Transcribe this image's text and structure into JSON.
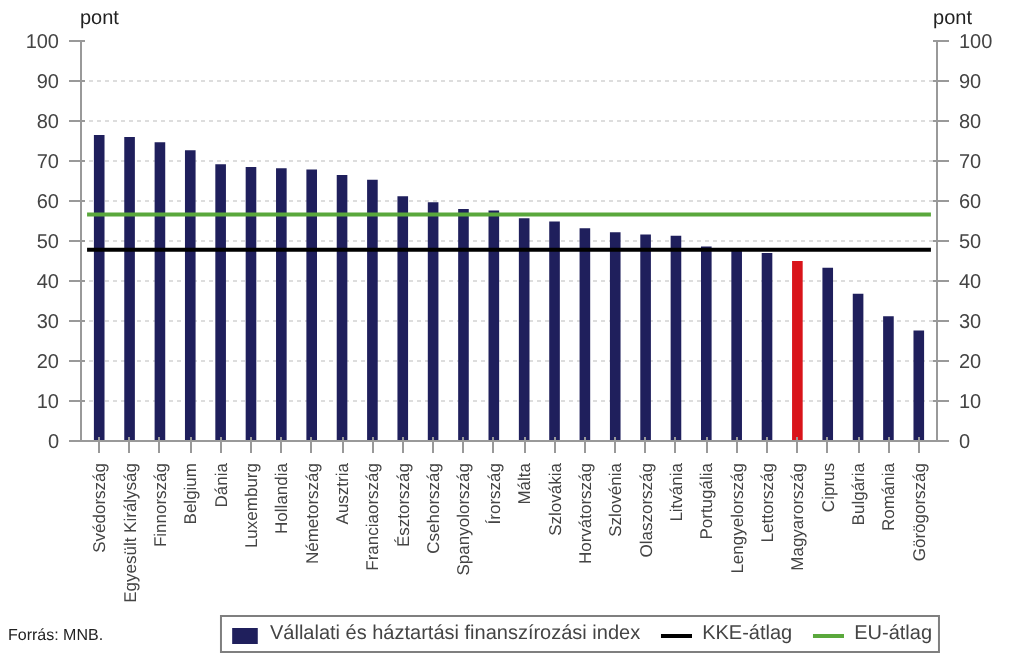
{
  "chart_data": {
    "type": "bar",
    "ylabel": "pont",
    "y2label": "pont",
    "categories": [
      "Svédország",
      "Egyesült Királyság",
      "Finnország",
      "Belgium",
      "Dánia",
      "Luxemburg",
      "Hollandia",
      "Németország",
      "Ausztria",
      "Franciaország",
      "Észtország",
      "Csehország",
      "Spanyolország",
      "Írország",
      "Málta",
      "Szlovákia",
      "Horvátország",
      "Szlovénia",
      "Olaszország",
      "Litvánia",
      "Portugália",
      "Lengyelország",
      "Lettország",
      "Magyarország",
      "Ciprus",
      "Bulgária",
      "Románia",
      "Görögország"
    ],
    "series": [
      {
        "name": "Vállalati és háztartási finanszírozási index",
        "color": "#1f1f5c",
        "colors": [
          "#1f1f5c",
          "#1f1f5c",
          "#1f1f5c",
          "#1f1f5c",
          "#1f1f5c",
          "#1f1f5c",
          "#1f1f5c",
          "#1f1f5c",
          "#1f1f5c",
          "#1f1f5c",
          "#1f1f5c",
          "#1f1f5c",
          "#1f1f5c",
          "#1f1f5c",
          "#1f1f5c",
          "#1f1f5c",
          "#1f1f5c",
          "#1f1f5c",
          "#1f1f5c",
          "#1f1f5c",
          "#1f1f5c",
          "#1f1f5c",
          "#1f1f5c",
          "#d9141a",
          "#1f1f5c",
          "#1f1f5c",
          "#1f1f5c",
          "#1f1f5c"
        ],
        "values": [
          76.5,
          76,
          74.7,
          72.7,
          69.2,
          68.5,
          68.2,
          67.9,
          66.5,
          65.3,
          61.2,
          59.7,
          58,
          57.6,
          55.7,
          54.9,
          53.2,
          52.2,
          51.6,
          51.3,
          48.6,
          47.9,
          47,
          45,
          43.3,
          36.8,
          31.2,
          27.6
        ]
      }
    ],
    "ref_lines": [
      {
        "axis": "y",
        "value": 47.8,
        "label": "KKE-átlag",
        "color": "#000000"
      },
      {
        "axis": "y",
        "value": 56.6,
        "label": "EU-átlag",
        "color": "#5aa83c"
      }
    ],
    "ylim": [
      0,
      100
    ],
    "yticks": [
      0,
      10,
      20,
      30,
      40,
      50,
      60,
      70,
      80,
      90,
      100
    ],
    "y2lim": [
      0,
      100
    ],
    "y2ticks": [
      0,
      10,
      20,
      30,
      40,
      50,
      60,
      70,
      80,
      90,
      100
    ],
    "grid": "y",
    "legend": "bottom",
    "annotations": [
      "Forrás: MNB."
    ]
  }
}
